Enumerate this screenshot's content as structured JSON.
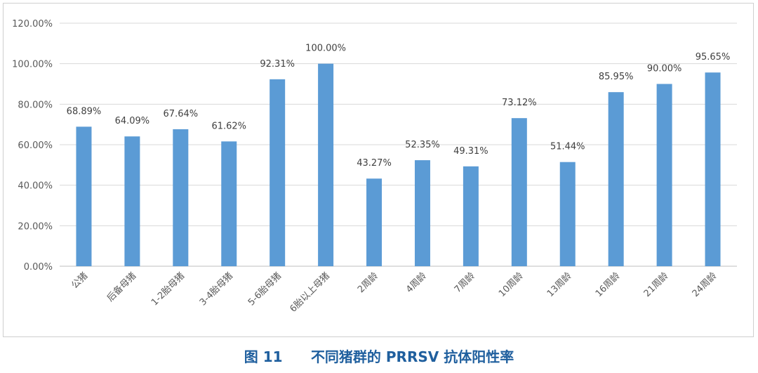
{
  "chart_data": {
    "type": "bar",
    "categories": [
      "公猪",
      "后备母猪",
      "1-2胎母猪",
      "3-4胎母猪",
      "5-6胎母猪",
      "6胎以上母猪",
      "2周龄",
      "4周龄",
      "7周龄",
      "10周龄",
      "13周龄",
      "16周龄",
      "21周龄",
      "24周龄"
    ],
    "values": [
      68.89,
      64.09,
      67.64,
      61.62,
      92.31,
      100.0,
      43.27,
      52.35,
      49.31,
      73.12,
      51.44,
      85.95,
      90.0,
      95.65
    ],
    "value_labels": [
      "68.89%",
      "64.09%",
      "67.64%",
      "61.62%",
      "92.31%",
      "100.00%",
      "43.27%",
      "52.35%",
      "49.31%",
      "73.12%",
      "51.44%",
      "85.95%",
      "90.00%",
      "95.65%"
    ],
    "ylim": [
      0,
      120
    ],
    "yticks": [
      "0.00%",
      "20.00%",
      "40.00%",
      "60.00%",
      "80.00%",
      "100.00%",
      "120.00%"
    ],
    "grid": true,
    "bar_color": "#5b9bd5",
    "xlabel": "",
    "ylabel": ""
  },
  "caption": {
    "figure_number": "图 11",
    "title": "不同猪群的 PRRSV 抗体阳性率",
    "color": "#1f5f9e"
  }
}
